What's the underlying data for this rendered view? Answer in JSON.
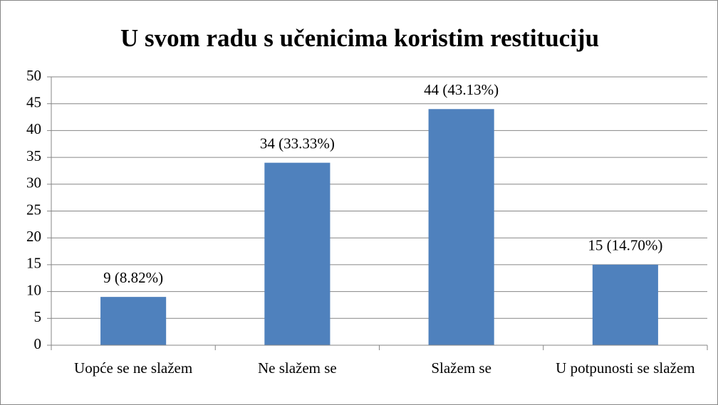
{
  "chart_data": {
    "type": "bar",
    "title": "U svom radu s učenicima koristim restituciju",
    "categories": [
      "Uopće se ne slažem",
      "Ne slažem se",
      "Slažem se",
      "U potpunosti se slažem"
    ],
    "values": [
      9,
      34,
      44,
      15
    ],
    "value_labels": [
      "9 (8.82%)",
      "34 (33.33%)",
      "44 (43.13%)",
      "15 (14.70%)"
    ],
    "color": "#4f81bd",
    "ylim": [
      0,
      50
    ],
    "yticks": [
      0,
      5,
      10,
      15,
      20,
      25,
      30,
      35,
      40,
      45,
      50
    ],
    "grid": true
  }
}
